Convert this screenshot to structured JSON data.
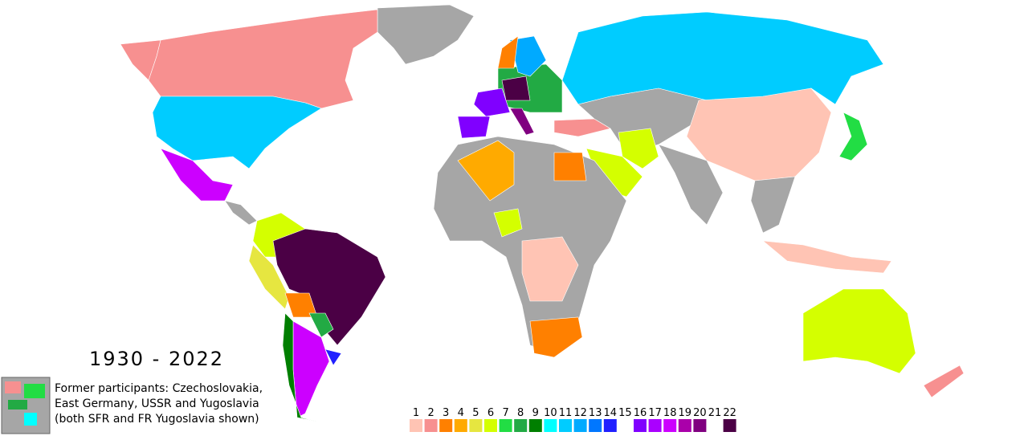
{
  "title": "1930 - 2022",
  "note": {
    "lines": [
      "Former participants: Czechoslovakia,",
      "East Germany, USSR and Yugoslavia",
      "(both SFR and FR Yugoslavia shown)"
    ]
  },
  "legend": {
    "items": [
      {
        "value": 1,
        "color": "#ffc4b4"
      },
      {
        "value": 2,
        "color": "#f79090"
      },
      {
        "value": 3,
        "color": "#ff8000"
      },
      {
        "value": 4,
        "color": "#ffaa00"
      },
      {
        "value": 5,
        "color": "#e6e640"
      },
      {
        "value": 6,
        "color": "#d4ff00"
      },
      {
        "value": 7,
        "color": "#22dd44"
      },
      {
        "value": 8,
        "color": "#22aa44"
      },
      {
        "value": 9,
        "color": "#007f00"
      },
      {
        "value": 10,
        "color": "#00ffff"
      },
      {
        "value": 11,
        "color": "#00ccff"
      },
      {
        "value": 12,
        "color": "#00aaff"
      },
      {
        "value": 13,
        "color": "#0077ff"
      },
      {
        "value": 14,
        "color": "#2020ff"
      },
      {
        "value": 15,
        "color": "#ffffff"
      },
      {
        "value": 16,
        "color": "#8000ff"
      },
      {
        "value": 17,
        "color": "#aa00ff"
      },
      {
        "value": 18,
        "color": "#cc00ff"
      },
      {
        "value": 19,
        "color": "#aa00aa"
      },
      {
        "value": 20,
        "color": "#800080"
      },
      {
        "value": 21,
        "color": "#ffffff"
      },
      {
        "value": 22,
        "color": "#4b0045"
      }
    ]
  }
}
